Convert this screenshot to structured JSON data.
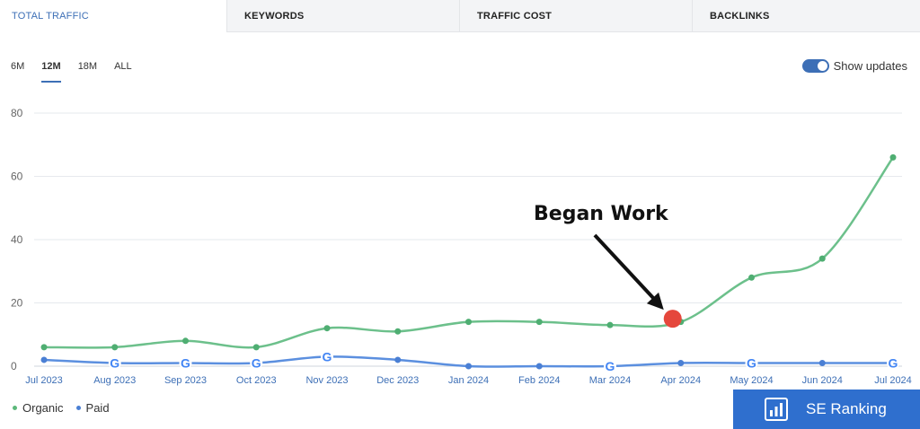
{
  "tabs": [
    {
      "label": "TOTAL TRAFFIC",
      "active": true
    },
    {
      "label": "KEYWORDS",
      "active": false
    },
    {
      "label": "TRAFFIC COST",
      "active": false
    },
    {
      "label": "BACKLINKS",
      "active": false
    }
  ],
  "periods": [
    {
      "label": "6M",
      "active": false
    },
    {
      "label": "12M",
      "active": true
    },
    {
      "label": "18M",
      "active": false
    },
    {
      "label": "ALL",
      "active": false
    }
  ],
  "toggle": {
    "label": "Show updates",
    "on": true
  },
  "legend": [
    {
      "label": "Organic",
      "color": "#5cb87a"
    },
    {
      "label": "Paid",
      "color": "#4a7fd4"
    }
  ],
  "brand": {
    "label": "SE Ranking",
    "icon": "bar-chart-icon"
  },
  "colors": {
    "accent": "#3d6fb6",
    "organic": "#6cc08b",
    "paid": "#5b8fdf",
    "marker": "#e5473c"
  },
  "chart_data": {
    "type": "line",
    "x": [
      "Jul 2023",
      "Aug 2023",
      "Sep 2023",
      "Oct 2023",
      "Nov 2023",
      "Dec 2023",
      "Jan 2024",
      "Feb 2024",
      "Mar 2024",
      "Apr 2024",
      "May 2024",
      "Jun 2024",
      "Jul 2024"
    ],
    "series": [
      {
        "name": "Organic",
        "values": [
          6,
          6,
          8,
          6,
          12,
          11,
          14,
          14,
          13,
          14,
          28,
          34,
          66
        ]
      },
      {
        "name": "Paid",
        "values": [
          2,
          1,
          1,
          1,
          3,
          2,
          0,
          0,
          0,
          1,
          1,
          1,
          1
        ]
      }
    ],
    "ylim": [
      0,
      80
    ],
    "yticks": [
      0,
      20,
      40,
      60,
      80
    ],
    "grid": true,
    "google_update_months": [
      "Aug 2023",
      "Sep 2023",
      "Oct 2023",
      "Nov 2023",
      "Mar 2024",
      "May 2024",
      "Jul 2024"
    ],
    "annotation": {
      "text": "Began Work",
      "x": "Apr 2024",
      "y": 15
    },
    "legend_position": "bottom-left"
  }
}
